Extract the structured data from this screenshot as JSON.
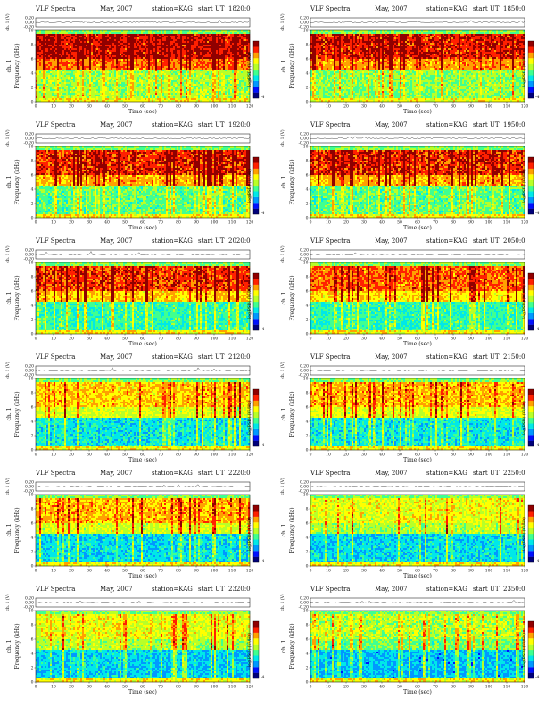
{
  "page": {
    "title_prefix": "VLF Spectra",
    "month": "May, 2007",
    "station": "station=KAG"
  },
  "common": {
    "ylabel_top_line1": "ch. 1 (V)",
    "ylabel_freq_line1": "ch. 1",
    "ylabel_freq_line2": "Frequency  (kHz)",
    "xlabel": "Time  (sec)",
    "colorbar_label": "log(PSD) (V²/Hz)",
    "start_ut_prefix": "start  UT"
  },
  "colors": {
    "ramp": [
      "#00007a",
      "#0010ff",
      "#0098ff",
      "#00e8e8",
      "#40ff90",
      "#b8ff28",
      "#ffff00",
      "#ffa000",
      "#ff2000",
      "#900000"
    ],
    "waveform_line": "#222222",
    "top_strip_bg": "#ffffff",
    "frame": "#000000"
  },
  "chart_data": [
    {
      "type": "heatmap",
      "start_ut": "1820:0",
      "x_ticks": [
        "0",
        "10",
        "20",
        "30",
        "40",
        "50",
        "60",
        "70",
        "80",
        "90",
        "100",
        "110",
        "120"
      ],
      "y_ticks": [
        "0",
        "2",
        "4",
        "6",
        "8",
        "10"
      ],
      "top_ticks": [
        "0.20",
        "0.00",
        "-0.20"
      ],
      "xlim": [
        0,
        120
      ],
      "ylim_khz": [
        0,
        10
      ],
      "top_ylim_v": [
        -0.2,
        0.2
      ],
      "colorbar_ticks": [
        "",
        "-4"
      ],
      "band_intensity": 0.9,
      "low_intensity": 0.52
    },
    {
      "type": "heatmap",
      "start_ut": "1850:0",
      "x_ticks": [
        "0",
        "10",
        "20",
        "30",
        "40",
        "50",
        "60",
        "70",
        "80",
        "90",
        "100",
        "110",
        "120"
      ],
      "y_ticks": [
        "0",
        "2",
        "4",
        "6",
        "8",
        "10"
      ],
      "top_ticks": [
        "0.20",
        "0.00",
        "-0.20"
      ],
      "xlim": [
        0,
        120
      ],
      "ylim_khz": [
        0,
        10
      ],
      "top_ylim_v": [
        -0.2,
        0.2
      ],
      "colorbar_ticks": [
        "",
        "-4"
      ],
      "band_intensity": 0.88,
      "low_intensity": 0.5
    },
    {
      "type": "heatmap",
      "start_ut": "1920:0",
      "x_ticks": [
        "0",
        "10",
        "20",
        "30",
        "40",
        "50",
        "60",
        "70",
        "80",
        "90",
        "100",
        "110",
        "120"
      ],
      "y_ticks": [
        "0",
        "2",
        "4",
        "6",
        "8",
        "10"
      ],
      "top_ticks": [
        "0.20",
        "0.00",
        "-0.20"
      ],
      "xlim": [
        0,
        120
      ],
      "ylim_khz": [
        0,
        10
      ],
      "top_ylim_v": [
        -0.2,
        0.2
      ],
      "colorbar_ticks": [
        "",
        "-4"
      ],
      "band_intensity": 0.86,
      "low_intensity": 0.45
    },
    {
      "type": "heatmap",
      "start_ut": "1950:0",
      "x_ticks": [
        "0",
        "10",
        "20",
        "30",
        "40",
        "50",
        "60",
        "70",
        "80",
        "90",
        "100",
        "110",
        "120"
      ],
      "y_ticks": [
        "0",
        "2",
        "4",
        "6",
        "8",
        "10"
      ],
      "top_ticks": [
        "0.20",
        "0.00",
        "-0.20"
      ],
      "xlim": [
        0,
        120
      ],
      "ylim_khz": [
        0,
        10
      ],
      "top_ylim_v": [
        -0.2,
        0.2
      ],
      "colorbar_ticks": [
        "",
        "-4"
      ],
      "band_intensity": 0.86,
      "low_intensity": 0.45
    },
    {
      "type": "heatmap",
      "start_ut": "2020:0",
      "x_ticks": [
        "0",
        "10",
        "20",
        "30",
        "40",
        "50",
        "60",
        "70",
        "80",
        "90",
        "100",
        "110",
        "120"
      ],
      "y_ticks": [
        "0",
        "2",
        "4",
        "6",
        "8",
        "10"
      ],
      "top_ticks": [
        "0.20",
        "0.00",
        "-0.20"
      ],
      "xlim": [
        0,
        120
      ],
      "ylim_khz": [
        0,
        10
      ],
      "top_ylim_v": [
        -0.2,
        0.2
      ],
      "colorbar_ticks": [
        "",
        "-4"
      ],
      "band_intensity": 0.84,
      "low_intensity": 0.4
    },
    {
      "type": "heatmap",
      "start_ut": "2050:0",
      "x_ticks": [
        "0",
        "10",
        "20",
        "30",
        "40",
        "50",
        "60",
        "70",
        "80",
        "90",
        "100",
        "110",
        "120"
      ],
      "y_ticks": [
        "0",
        "2",
        "4",
        "6",
        "8",
        "10"
      ],
      "top_ticks": [
        "0.20",
        "0.00",
        "-0.20"
      ],
      "xlim": [
        0,
        120
      ],
      "ylim_khz": [
        0,
        10
      ],
      "top_ylim_v": [
        -0.2,
        0.2
      ],
      "colorbar_ticks": [
        "",
        "-4"
      ],
      "band_intensity": 0.8,
      "low_intensity": 0.4
    },
    {
      "type": "heatmap",
      "start_ut": "2120:0",
      "x_ticks": [
        "0",
        "10",
        "20",
        "30",
        "40",
        "50",
        "60",
        "70",
        "80",
        "90",
        "100",
        "110",
        "120"
      ],
      "y_ticks": [
        "0",
        "2",
        "4",
        "6",
        "8",
        "10"
      ],
      "top_ticks": [
        "0.20",
        "0.00",
        "-0.20"
      ],
      "xlim": [
        0,
        120
      ],
      "ylim_khz": [
        0,
        10
      ],
      "top_ylim_v": [
        -0.2,
        0.2
      ],
      "colorbar_ticks": [
        "",
        "-4"
      ],
      "band_intensity": 0.7,
      "low_intensity": 0.34
    },
    {
      "type": "heatmap",
      "start_ut": "2150:0",
      "x_ticks": [
        "0",
        "10",
        "20",
        "30",
        "40",
        "50",
        "60",
        "70",
        "80",
        "90",
        "100",
        "110",
        "120"
      ],
      "y_ticks": [
        "0",
        "2",
        "4",
        "6",
        "8",
        "10"
      ],
      "top_ticks": [
        "0.20",
        "0.00",
        "-0.20"
      ],
      "xlim": [
        0,
        120
      ],
      "ylim_khz": [
        0,
        10
      ],
      "top_ylim_v": [
        -0.2,
        0.2
      ],
      "colorbar_ticks": [
        "",
        "-4"
      ],
      "band_intensity": 0.72,
      "low_intensity": 0.34
    },
    {
      "type": "heatmap",
      "start_ut": "2220:0",
      "x_ticks": [
        "0",
        "10",
        "20",
        "30",
        "40",
        "50",
        "60",
        "70",
        "80",
        "90",
        "100",
        "110",
        "120"
      ],
      "y_ticks": [
        "0",
        "2",
        "4",
        "6",
        "8",
        "10"
      ],
      "top_ticks": [
        "0.20",
        "0.00",
        "-0.20"
      ],
      "xlim": [
        0,
        120
      ],
      "ylim_khz": [
        0,
        10
      ],
      "top_ylim_v": [
        -0.2,
        0.2
      ],
      "colorbar_ticks": [
        "",
        "-4"
      ],
      "band_intensity": 0.72,
      "low_intensity": 0.32
    },
    {
      "type": "heatmap",
      "start_ut": "2250:0",
      "x_ticks": [
        "0",
        "10",
        "20",
        "30",
        "40",
        "50",
        "60",
        "70",
        "80",
        "90",
        "100",
        "110",
        "120"
      ],
      "y_ticks": [
        "0",
        "2",
        "4",
        "6",
        "8",
        "10"
      ],
      "top_ticks": [
        "0.20",
        "0.00",
        "-0.20"
      ],
      "xlim": [
        0,
        120
      ],
      "ylim_khz": [
        0,
        10
      ],
      "top_ylim_v": [
        -0.2,
        0.2
      ],
      "colorbar_ticks": [
        "",
        "-4"
      ],
      "band_intensity": 0.62,
      "low_intensity": 0.32
    },
    {
      "type": "heatmap",
      "start_ut": "2320:0",
      "x_ticks": [
        "0",
        "10",
        "20",
        "30",
        "40",
        "50",
        "60",
        "70",
        "80",
        "90",
        "100",
        "110",
        "120"
      ],
      "y_ticks": [
        "0",
        "2",
        "4",
        "6",
        "8",
        "10"
      ],
      "top_ticks": [
        "0.20",
        "0.00",
        "-0.20"
      ],
      "xlim": [
        0,
        120
      ],
      "ylim_khz": [
        0,
        10
      ],
      "top_ylim_v": [
        -0.2,
        0.2
      ],
      "colorbar_ticks": [
        "",
        "-4"
      ],
      "band_intensity": 0.62,
      "low_intensity": 0.3
    },
    {
      "type": "heatmap",
      "start_ut": "2350:0",
      "x_ticks": [
        "0",
        "10",
        "20",
        "30",
        "40",
        "50",
        "60",
        "70",
        "80",
        "90",
        "100",
        "110",
        "120"
      ],
      "y_ticks": [
        "0",
        "2",
        "4",
        "6",
        "8",
        "10"
      ],
      "top_ticks": [
        "0.20",
        "0.00",
        "-0.20"
      ],
      "xlim": [
        0,
        120
      ],
      "ylim_khz": [
        0,
        10
      ],
      "top_ylim_v": [
        -0.2,
        0.2
      ],
      "colorbar_ticks": [
        "",
        "-4"
      ],
      "band_intensity": 0.55,
      "low_intensity": 0.28
    }
  ]
}
